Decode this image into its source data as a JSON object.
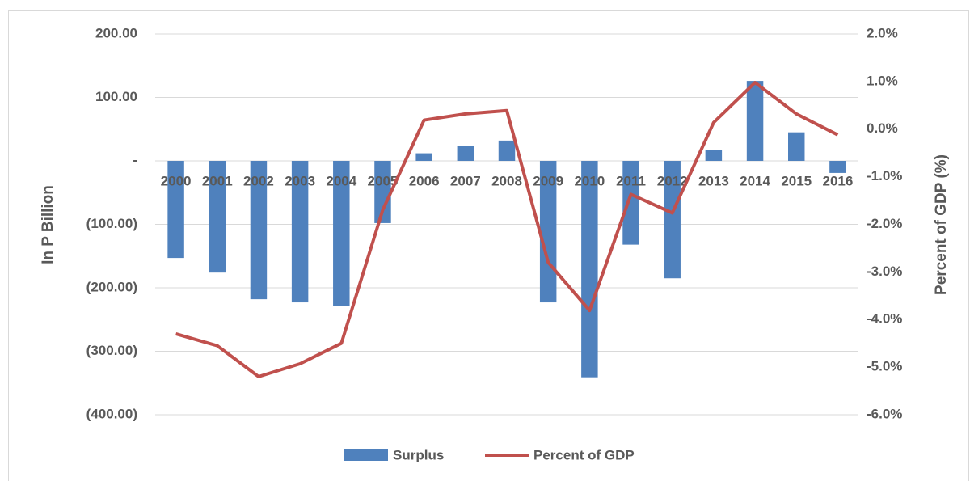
{
  "chart_data": {
    "type": "bar-line",
    "categories": [
      "2000",
      "2001",
      "2002",
      "2003",
      "2004",
      "2005",
      "2006",
      "2007",
      "2008",
      "2009",
      "2010",
      "2011",
      "2012",
      "2013",
      "2014",
      "2015",
      "2016"
    ],
    "series": [
      {
        "name": "Surplus",
        "type": "bar",
        "color": "#4f81bd",
        "values": [
          -153,
          -176,
          -218,
          -223,
          -229,
          -98,
          12,
          23,
          32,
          -223,
          -341,
          -132,
          -185,
          17,
          126,
          45,
          -19
        ]
      },
      {
        "name": "Percent of GDP",
        "type": "line",
        "axis": "y2",
        "color": "#c0504d",
        "values": [
          -4.3,
          -4.55,
          -5.2,
          -4.93,
          -4.5,
          -1.7,
          0.19,
          0.32,
          0.39,
          -2.8,
          -3.81,
          -1.37,
          -1.76,
          0.14,
          0.98,
          0.32,
          -0.12
        ]
      }
    ],
    "y_label": "In P Billion",
    "y2_label": "Percent of GDP (%)",
    "ylim": [
      -400,
      200
    ],
    "yticks": [
      {
        "value": -400,
        "label": "(400.00)"
      },
      {
        "value": -300,
        "label": "(300.00)"
      },
      {
        "value": -200,
        "label": "(200.00)"
      },
      {
        "value": -100,
        "label": "(100.00)"
      },
      {
        "value": 0,
        "label": "-"
      },
      {
        "value": 100,
        "label": "100.00"
      },
      {
        "value": 200,
        "label": "200.00"
      }
    ],
    "y2lim": [
      -6,
      2
    ],
    "y2ticks": [
      {
        "value": -6,
        "label": "-6.0%"
      },
      {
        "value": -5,
        "label": "-5.0%"
      },
      {
        "value": -4,
        "label": "-4.0%"
      },
      {
        "value": -3,
        "label": "-3.0%"
      },
      {
        "value": -2,
        "label": "-2.0%"
      },
      {
        "value": -1,
        "label": "-1.0%"
      },
      {
        "value": 0,
        "label": "0.0%"
      },
      {
        "value": 1,
        "label": "1.0%"
      },
      {
        "value": 2,
        "label": "2.0%"
      }
    ],
    "grid": true,
    "legend": "bottom"
  }
}
